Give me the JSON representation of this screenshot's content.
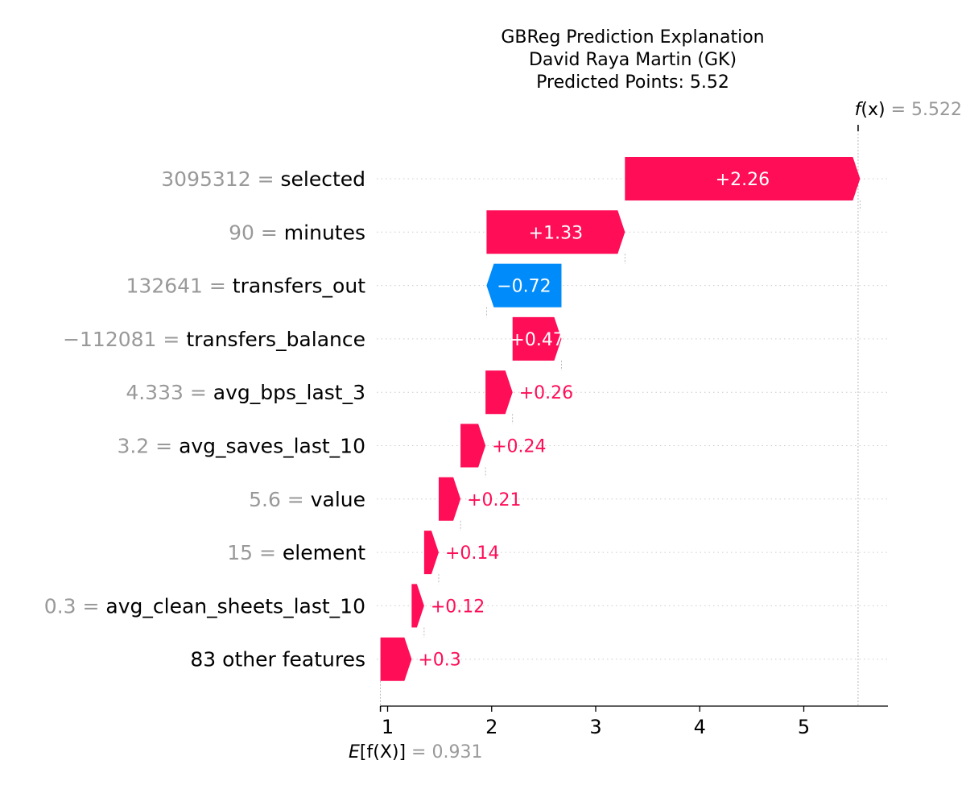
{
  "title_lines": [
    "GBReg Prediction Explanation",
    "David Raya Martin (GK)",
    "Predicted Points: 5.52"
  ],
  "fx_label": {
    "fn": "f",
    "arg": "(x)",
    "eq": " = ",
    "value": "5.522"
  },
  "ex_label": {
    "fn": "E",
    "inner": "[f(X)]",
    "eq": " = ",
    "value": "0.931"
  },
  "colors": {
    "positive": "#ff0d57",
    "negative": "#008bfb",
    "value_text": "#999999",
    "grid": "#cccccc"
  },
  "chart_data": {
    "type": "bar",
    "subtype": "waterfall",
    "base_value": 0.931,
    "output_value": 5.522,
    "xlim": [
      0.93,
      5.8
    ],
    "x_ticks": [
      1,
      2,
      3,
      4,
      5
    ],
    "x_tick_labels": [
      "1",
      "2",
      "3",
      "4",
      "5"
    ],
    "features": [
      {
        "value": "3095312",
        "name": "selected",
        "shap": 2.26,
        "label": "+2.26"
      },
      {
        "value": "90",
        "name": "minutes",
        "shap": 1.33,
        "label": "+1.33"
      },
      {
        "value": "132641",
        "name": "transfers_out",
        "shap": -0.72,
        "label": "−0.72"
      },
      {
        "value": "−112081",
        "name": "transfers_balance",
        "shap": 0.47,
        "label": "+0.47"
      },
      {
        "value": "4.333",
        "name": "avg_bps_last_3",
        "shap": 0.26,
        "label": "+0.26"
      },
      {
        "value": "3.2",
        "name": "avg_saves_last_10",
        "shap": 0.24,
        "label": "+0.24"
      },
      {
        "value": "5.6",
        "name": "value",
        "shap": 0.21,
        "label": "+0.21"
      },
      {
        "value": "15",
        "name": "element",
        "shap": 0.14,
        "label": "+0.14"
      },
      {
        "value": "0.3",
        "name": "avg_clean_sheets_last_10",
        "shap": 0.12,
        "label": "+0.12"
      },
      {
        "value": "",
        "name": "83 other features",
        "shap": 0.3,
        "label": "+0.3"
      }
    ]
  }
}
